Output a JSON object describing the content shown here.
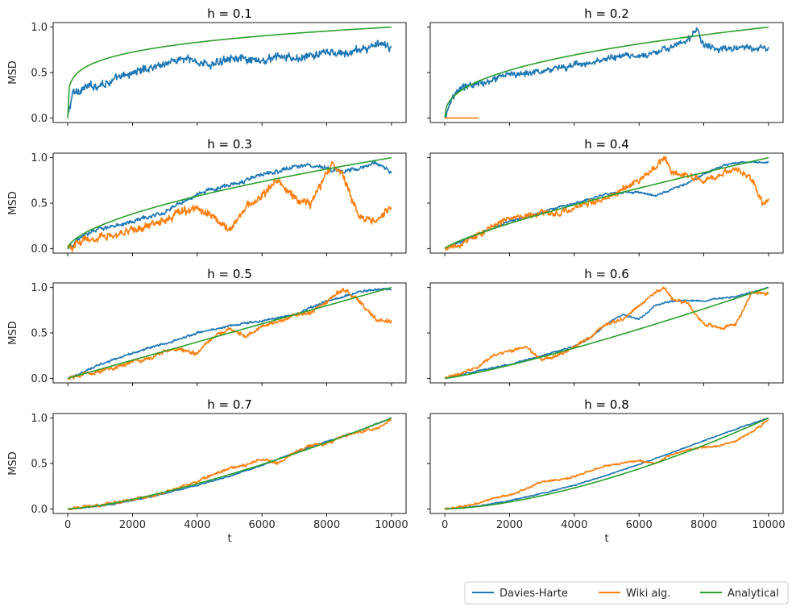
{
  "figure": {
    "legend": {
      "placement": "bottom-right",
      "entries": [
        {
          "label": "Davies-Harte",
          "color": "#1f77b4"
        },
        {
          "label": "Wiki alg.",
          "color": "#ff7f0e"
        },
        {
          "label": "Analytical",
          "color": "#2ca02c"
        }
      ]
    }
  },
  "chart_data": [
    {
      "type": "line",
      "title": "h = 0.1",
      "xlabel": "",
      "ylabel": "MSD",
      "xlim": [
        0,
        10000
      ],
      "ylim": [
        0,
        1.0
      ],
      "xticks": [
        0,
        2000,
        4000,
        6000,
        8000,
        10000
      ],
      "yticks": [
        0.0,
        0.5,
        1.0
      ],
      "series": [
        {
          "name": "Davies-Harte",
          "color": "#1f77b4",
          "noise": 0.04,
          "x": [
            0,
            150,
            500,
            1000,
            1500,
            2000,
            2500,
            3000,
            3500,
            4000,
            4500,
            5000,
            5500,
            6000,
            6500,
            7000,
            7500,
            8000,
            8500,
            9000,
            9500,
            10000
          ],
          "y": [
            0.0,
            0.27,
            0.33,
            0.37,
            0.42,
            0.5,
            0.55,
            0.6,
            0.65,
            0.62,
            0.58,
            0.68,
            0.63,
            0.62,
            0.68,
            0.65,
            0.68,
            0.72,
            0.7,
            0.75,
            0.8,
            0.78
          ]
        },
        {
          "name": "Wiki alg.",
          "color": "#ff7f0e",
          "noise": 0.0,
          "x": [
            0,
            10000
          ],
          "y": [
            null,
            null
          ]
        },
        {
          "name": "Analytical",
          "color": "#2ca02c",
          "noise": 0.0,
          "formula_h": 0.1,
          "x": [
            0,
            10000
          ],
          "y": [
            0.0,
            1.0
          ]
        }
      ]
    },
    {
      "type": "line",
      "title": "h = 0.2",
      "xlabel": "",
      "ylabel": "",
      "xlim": [
        0,
        10000
      ],
      "ylim": [
        0,
        1.0
      ],
      "xticks": [
        0,
        2000,
        4000,
        6000,
        8000,
        10000
      ],
      "yticks": [
        0.0,
        0.5,
        1.0
      ],
      "series": [
        {
          "name": "Davies-Harte",
          "color": "#1f77b4",
          "noise": 0.03,
          "x": [
            0,
            200,
            500,
            1000,
            1500,
            2000,
            2500,
            3000,
            3500,
            4000,
            4500,
            5000,
            5500,
            6000,
            6500,
            7000,
            7500,
            7800,
            8000,
            8500,
            9000,
            9500,
            10000
          ],
          "y": [
            0.0,
            0.22,
            0.33,
            0.38,
            0.42,
            0.48,
            0.5,
            0.52,
            0.55,
            0.58,
            0.6,
            0.65,
            0.68,
            0.67,
            0.72,
            0.78,
            0.85,
            0.97,
            0.8,
            0.75,
            0.78,
            0.76,
            0.78
          ]
        },
        {
          "name": "Wiki alg.",
          "color": "#ff7f0e",
          "noise": 0.0,
          "x": [
            0,
            1050
          ],
          "y": [
            0.0,
            0.0
          ]
        },
        {
          "name": "Analytical",
          "color": "#2ca02c",
          "noise": 0.0,
          "formula_h": 0.2,
          "x": [
            0,
            10000
          ],
          "y": [
            0.0,
            1.0
          ]
        }
      ]
    },
    {
      "type": "line",
      "title": "h = 0.3",
      "xlabel": "",
      "ylabel": "MSD",
      "xlim": [
        0,
        10000
      ],
      "ylim": [
        0,
        1.0
      ],
      "xticks": [
        0,
        2000,
        4000,
        6000,
        8000,
        10000
      ],
      "yticks": [
        0.0,
        0.5,
        1.0
      ],
      "series": [
        {
          "name": "Davies-Harte",
          "color": "#1f77b4",
          "noise": 0.02,
          "x": [
            0,
            500,
            1000,
            1500,
            2000,
            2500,
            3000,
            3500,
            4000,
            4500,
            5000,
            5500,
            6000,
            6500,
            7000,
            7500,
            8000,
            8500,
            9000,
            9500,
            10000
          ],
          "y": [
            0.0,
            0.15,
            0.22,
            0.25,
            0.3,
            0.35,
            0.4,
            0.5,
            0.6,
            0.65,
            0.7,
            0.75,
            0.82,
            0.85,
            0.9,
            0.92,
            0.88,
            0.85,
            0.88,
            0.95,
            0.85
          ]
        },
        {
          "name": "Wiki alg.",
          "color": "#ff7f0e",
          "noise": 0.04,
          "x": [
            0,
            500,
            1000,
            1500,
            2000,
            2500,
            3000,
            3500,
            4000,
            4500,
            5000,
            5500,
            6000,
            6500,
            7000,
            7500,
            8000,
            8200,
            8500,
            9000,
            9500,
            10000
          ],
          "y": [
            0.0,
            0.08,
            0.12,
            0.15,
            0.2,
            0.25,
            0.3,
            0.4,
            0.45,
            0.35,
            0.2,
            0.45,
            0.6,
            0.75,
            0.55,
            0.5,
            0.82,
            0.95,
            0.8,
            0.35,
            0.3,
            0.45
          ]
        },
        {
          "name": "Analytical",
          "color": "#2ca02c",
          "noise": 0.0,
          "formula_h": 0.3,
          "x": [
            0,
            10000
          ],
          "y": [
            0.0,
            1.0
          ]
        }
      ]
    },
    {
      "type": "line",
      "title": "h = 0.4",
      "xlabel": "",
      "ylabel": "",
      "xlim": [
        0,
        10000
      ],
      "ylim": [
        0,
        1.0
      ],
      "xticks": [
        0,
        2000,
        4000,
        6000,
        8000,
        10000
      ],
      "yticks": [
        0.0,
        0.5,
        1.0
      ],
      "series": [
        {
          "name": "Davies-Harte",
          "color": "#1f77b4",
          "noise": 0.01,
          "x": [
            0,
            1000,
            2000,
            3000,
            4000,
            5000,
            5500,
            6000,
            6500,
            7000,
            7500,
            8000,
            8500,
            9000,
            9500,
            10000
          ],
          "y": [
            0.0,
            0.15,
            0.3,
            0.4,
            0.5,
            0.6,
            0.62,
            0.62,
            0.58,
            0.65,
            0.72,
            0.82,
            0.9,
            0.95,
            0.95,
            0.95
          ]
        },
        {
          "name": "Wiki alg.",
          "color": "#ff7f0e",
          "noise": 0.03,
          "x": [
            0,
            500,
            1000,
            1500,
            2000,
            2500,
            3000,
            3500,
            4000,
            4500,
            5000,
            5500,
            6000,
            6500,
            6800,
            7000,
            7500,
            8000,
            8500,
            9000,
            9500,
            9800,
            10000
          ],
          "y": [
            0.0,
            0.05,
            0.15,
            0.25,
            0.33,
            0.35,
            0.4,
            0.38,
            0.45,
            0.5,
            0.55,
            0.65,
            0.75,
            0.9,
            1.0,
            0.85,
            0.8,
            0.75,
            0.8,
            0.9,
            0.75,
            0.5,
            0.55
          ]
        },
        {
          "name": "Analytical",
          "color": "#2ca02c",
          "noise": 0.0,
          "formula_h": 0.4,
          "x": [
            0,
            10000
          ],
          "y": [
            0.0,
            1.0
          ]
        }
      ]
    },
    {
      "type": "line",
      "title": "h = 0.5",
      "xlabel": "",
      "ylabel": "MSD",
      "xlim": [
        0,
        10000
      ],
      "ylim": [
        0,
        1.0
      ],
      "xticks": [
        0,
        2000,
        4000,
        6000,
        8000,
        10000
      ],
      "yticks": [
        0.0,
        0.5,
        1.0
      ],
      "series": [
        {
          "name": "Davies-Harte",
          "color": "#1f77b4",
          "noise": 0.01,
          "x": [
            0,
            1000,
            2000,
            3000,
            4000,
            5000,
            6000,
            7000,
            7500,
            8000,
            8500,
            9000,
            9500,
            10000
          ],
          "y": [
            0.0,
            0.15,
            0.28,
            0.38,
            0.5,
            0.58,
            0.63,
            0.7,
            0.78,
            0.85,
            0.9,
            0.95,
            0.98,
            0.98
          ]
        },
        {
          "name": "Wiki alg.",
          "color": "#ff7f0e",
          "noise": 0.02,
          "x": [
            0,
            500,
            1000,
            1500,
            2000,
            2500,
            3000,
            3500,
            4000,
            4500,
            5000,
            5500,
            6000,
            6500,
            7000,
            7500,
            8000,
            8500,
            9000,
            9500,
            10000
          ],
          "y": [
            0.0,
            0.05,
            0.08,
            0.12,
            0.18,
            0.22,
            0.3,
            0.32,
            0.28,
            0.45,
            0.55,
            0.45,
            0.58,
            0.62,
            0.7,
            0.72,
            0.85,
            0.98,
            0.85,
            0.65,
            0.62
          ]
        },
        {
          "name": "Analytical",
          "color": "#2ca02c",
          "noise": 0.0,
          "formula_h": 0.5,
          "x": [
            0,
            10000
          ],
          "y": [
            0.0,
            1.0
          ]
        }
      ]
    },
    {
      "type": "line",
      "title": "h = 0.6",
      "xlabel": "",
      "ylabel": "",
      "xlim": [
        0,
        10000
      ],
      "ylim": [
        0,
        1.0
      ],
      "xticks": [
        0,
        2000,
        4000,
        6000,
        8000,
        10000
      ],
      "yticks": [
        0.0,
        0.5,
        1.0
      ],
      "series": [
        {
          "name": "Davies-Harte",
          "color": "#1f77b4",
          "noise": 0.008,
          "x": [
            0,
            1000,
            2000,
            3000,
            4000,
            4500,
            5000,
            5500,
            6000,
            6500,
            7000,
            7500,
            8000,
            8500,
            9000,
            9500,
            10000
          ],
          "y": [
            0.0,
            0.08,
            0.15,
            0.25,
            0.35,
            0.45,
            0.6,
            0.7,
            0.65,
            0.8,
            0.85,
            0.86,
            0.85,
            0.88,
            0.9,
            0.95,
            1.0
          ]
        },
        {
          "name": "Wiki alg.",
          "color": "#ff7f0e",
          "noise": 0.015,
          "x": [
            0,
            500,
            1000,
            1500,
            2000,
            2500,
            3000,
            3500,
            4000,
            4500,
            5000,
            5500,
            6000,
            6500,
            6800,
            7000,
            7500,
            8000,
            8500,
            9000,
            9500,
            10000
          ],
          "y": [
            0.0,
            0.05,
            0.12,
            0.25,
            0.3,
            0.35,
            0.2,
            0.25,
            0.35,
            0.45,
            0.6,
            0.65,
            0.8,
            0.95,
            1.0,
            0.88,
            0.82,
            0.6,
            0.55,
            0.6,
            0.95,
            0.93
          ]
        },
        {
          "name": "Analytical",
          "color": "#2ca02c",
          "noise": 0.0,
          "formula_h": 0.6,
          "x": [
            0,
            10000
          ],
          "y": [
            0.0,
            1.0
          ]
        }
      ]
    },
    {
      "type": "line",
      "title": "h = 0.7",
      "xlabel": "t",
      "ylabel": "MSD",
      "xlim": [
        0,
        10000
      ],
      "ylim": [
        0,
        1.0
      ],
      "xticks": [
        0,
        2000,
        4000,
        6000,
        8000,
        10000
      ],
      "yticks": [
        0.0,
        0.5,
        1.0
      ],
      "series": [
        {
          "name": "Davies-Harte",
          "color": "#1f77b4",
          "noise": 0.006,
          "x": [
            0,
            1000,
            2000,
            3000,
            4000,
            5000,
            6000,
            7000,
            8000,
            9000,
            10000
          ],
          "y": [
            0.0,
            0.03,
            0.09,
            0.17,
            0.26,
            0.36,
            0.48,
            0.62,
            0.74,
            0.86,
            1.0
          ]
        },
        {
          "name": "Wiki alg.",
          "color": "#ff7f0e",
          "noise": 0.015,
          "x": [
            0,
            1000,
            2000,
            3000,
            4000,
            4500,
            5000,
            5500,
            6000,
            6500,
            7000,
            7500,
            8000,
            8500,
            9000,
            9500,
            10000
          ],
          "y": [
            0.0,
            0.04,
            0.1,
            0.18,
            0.3,
            0.38,
            0.45,
            0.48,
            0.55,
            0.5,
            0.62,
            0.7,
            0.72,
            0.8,
            0.85,
            0.88,
            0.98
          ]
        },
        {
          "name": "Analytical",
          "color": "#2ca02c",
          "noise": 0.0,
          "formula_h": 0.7,
          "x": [
            0,
            10000
          ],
          "y": [
            0.0,
            1.0
          ]
        }
      ]
    },
    {
      "type": "line",
      "title": "h = 0.8",
      "xlabel": "t",
      "ylabel": "",
      "xlim": [
        0,
        10000
      ],
      "ylim": [
        0,
        1.0
      ],
      "xticks": [
        0,
        2000,
        4000,
        6000,
        8000,
        10000
      ],
      "yticks": [
        0.0,
        0.5,
        1.0
      ],
      "series": [
        {
          "name": "Davies-Harte",
          "color": "#1f77b4",
          "noise": 0.005,
          "x": [
            0,
            1000,
            2000,
            3000,
            4000,
            5000,
            6000,
            7000,
            8000,
            9000,
            10000
          ],
          "y": [
            0.0,
            0.03,
            0.09,
            0.17,
            0.26,
            0.37,
            0.49,
            0.62,
            0.75,
            0.88,
            1.0
          ]
        },
        {
          "name": "Wiki alg.",
          "color": "#ff7f0e",
          "noise": 0.01,
          "x": [
            0,
            500,
            1000,
            1500,
            2000,
            2500,
            3000,
            3500,
            4000,
            4500,
            5000,
            5500,
            6000,
            6500,
            7000,
            7500,
            8000,
            8500,
            9000,
            9500,
            10000
          ],
          "y": [
            0.0,
            0.02,
            0.06,
            0.12,
            0.15,
            0.22,
            0.3,
            0.32,
            0.35,
            0.42,
            0.48,
            0.5,
            0.53,
            0.5,
            0.6,
            0.65,
            0.68,
            0.7,
            0.75,
            0.85,
            0.98
          ]
        },
        {
          "name": "Analytical",
          "color": "#2ca02c",
          "noise": 0.0,
          "formula_h": 0.8,
          "x": [
            0,
            10000
          ],
          "y": [
            0.0,
            1.0
          ]
        }
      ]
    }
  ]
}
